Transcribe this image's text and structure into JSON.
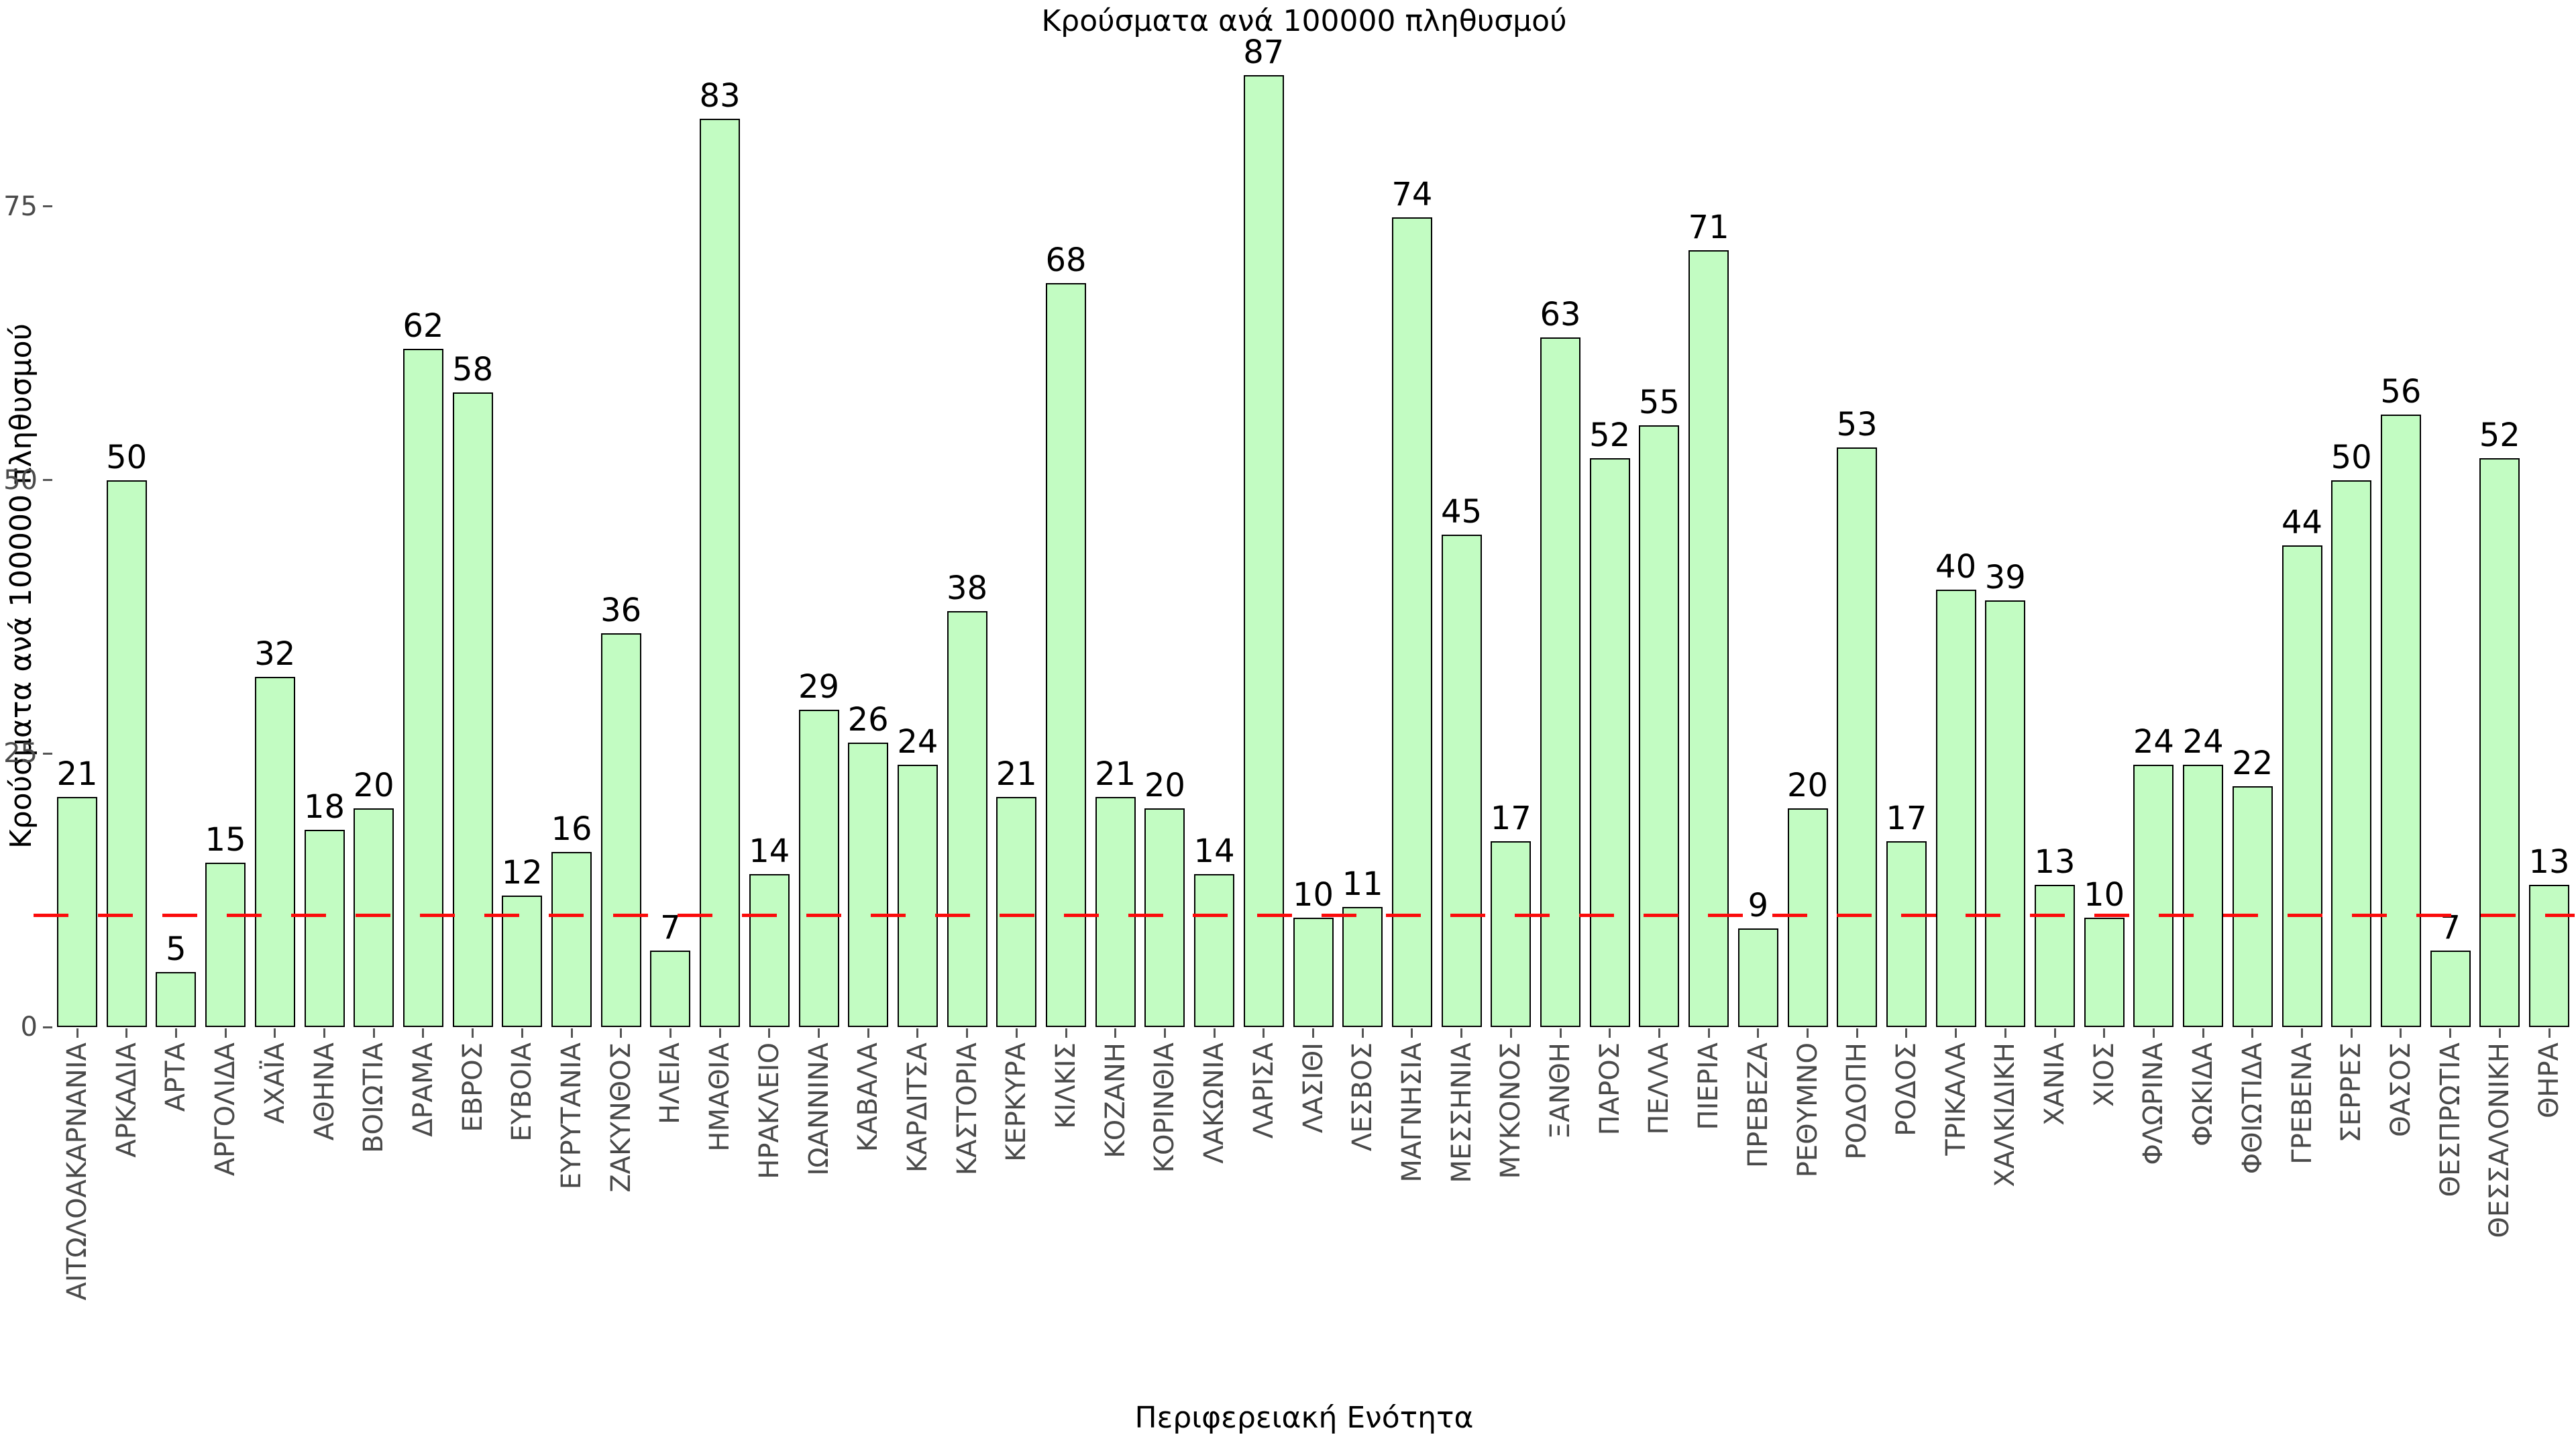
{
  "chart_data": {
    "type": "bar",
    "title": "Κρούσματα ανά 100000 πληθυσμού",
    "xlabel": "Περιφερειακή Ενότητα",
    "ylabel": "Κρούσματα ανά 100000 πληθυσμού",
    "categories": [
      "ΑΙΤΩΛΟΑΚΑΡΝΑΝΙΑ",
      "ΑΡΚΑΔΙΑ",
      "ΑΡΤΑ",
      "ΑΡΓΟΛΙΔΑ",
      "ΑΧΑΪΑ",
      "ΑΘΗΝΑ",
      "ΒΟΙΩΤΙΑ",
      "ΔΡΑΜΑ",
      "ΕΒΡΟΣ",
      "ΕΥΒΟΙΑ",
      "ΕΥΡΥΤΑΝΙΑ",
      "ΖΑΚΥΝΘΟΣ",
      "ΗΛΕΙΑ",
      "ΗΜΑΘΙΑ",
      "ΗΡΑΚΛΕΙΟ",
      "ΙΩΑΝΝΙΝΑ",
      "ΚΑΒΑΛΑ",
      "ΚΑΡΔΙΤΣΑ",
      "ΚΑΣΤΟΡΙΑ",
      "ΚΕΡΚΥΡΑ",
      "ΚΙΛΚΙΣ",
      "ΚΟΖΑΝΗ",
      "ΚΟΡΙΝΘΙΑ",
      "ΛΑΚΩΝΙΑ",
      "ΛΑΡΙΣΑ",
      "ΛΑΣΙΘΙ",
      "ΛΕΣΒΟΣ",
      "ΜΑΓΝΗΣΙΑ",
      "ΜΕΣΣΗΝΙΑ",
      "ΜΥΚΟΝΟΣ",
      "ΞΑΝΘΗ",
      "ΠΑΡΟΣ",
      "ΠΕΛΛΑ",
      "ΠΙΕΡΙΑ",
      "ΠΡΕΒΕΖΑ",
      "ΡΕΘΥΜΝΟ",
      "ΡΟΔΟΠΗ",
      "ΡΟΔΟΣ",
      "ΤΡΙΚΑΛΑ",
      "ΧΑΛΚΙΔΙΚΗ",
      "ΧΑΝΙΑ",
      "ΧΙΟΣ",
      "ΦΛΩΡΙΝΑ",
      "ΦΩΚΙΔΑ",
      "ΦΘΙΩΤΙΔΑ",
      "ΓΡΕΒΕΝΑ",
      "ΣΕΡΡΕΣ",
      "ΘΑΣΟΣ",
      "ΘΕΣΠΡΩΤΙΑ",
      "ΘΕΣΣΑΛΟΝΙΚΗ",
      "ΘΗΡΑ"
    ],
    "values": [
      21,
      50,
      5,
      15,
      32,
      18,
      20,
      62,
      58,
      12,
      16,
      36,
      7,
      83,
      14,
      29,
      26,
      24,
      38,
      21,
      68,
      21,
      20,
      14,
      87,
      10,
      11,
      74,
      45,
      17,
      63,
      52,
      55,
      71,
      9,
      20,
      53,
      17,
      40,
      39,
      13,
      10,
      24,
      24,
      22,
      44,
      50,
      56,
      7,
      52,
      13
    ],
    "bar_value_labels": [
      "21",
      "50",
      "5",
      "15",
      "32",
      "18",
      "20",
      "62",
      "58",
      "12",
      "16",
      "36",
      "7",
      "83",
      "14",
      "29",
      "26",
      "24",
      "38",
      "21",
      "68",
      "21",
      "20",
      "14",
      "87",
      "10",
      "11",
      "74",
      "45",
      "17",
      "63",
      "52",
      "55",
      "71",
      "9",
      "20",
      "53",
      "17",
      "40",
      "39",
      "13",
      "10",
      "24",
      "24",
      "22",
      "44",
      "50",
      "56",
      "7",
      "52",
      "13"
    ],
    "yticks": [
      0,
      25,
      50,
      75
    ],
    "ylim": [
      0,
      92
    ],
    "grid": false,
    "legend": null,
    "reference_line": {
      "value": 10.2,
      "style": "dashed",
      "color": "#fb0b0b"
    },
    "colors": {
      "bar_fill": "#c2fcc2",
      "bar_border": "#000000",
      "tick_text": "#4a4a4a",
      "title_text": "#000000",
      "background": "#ffffff"
    }
  }
}
